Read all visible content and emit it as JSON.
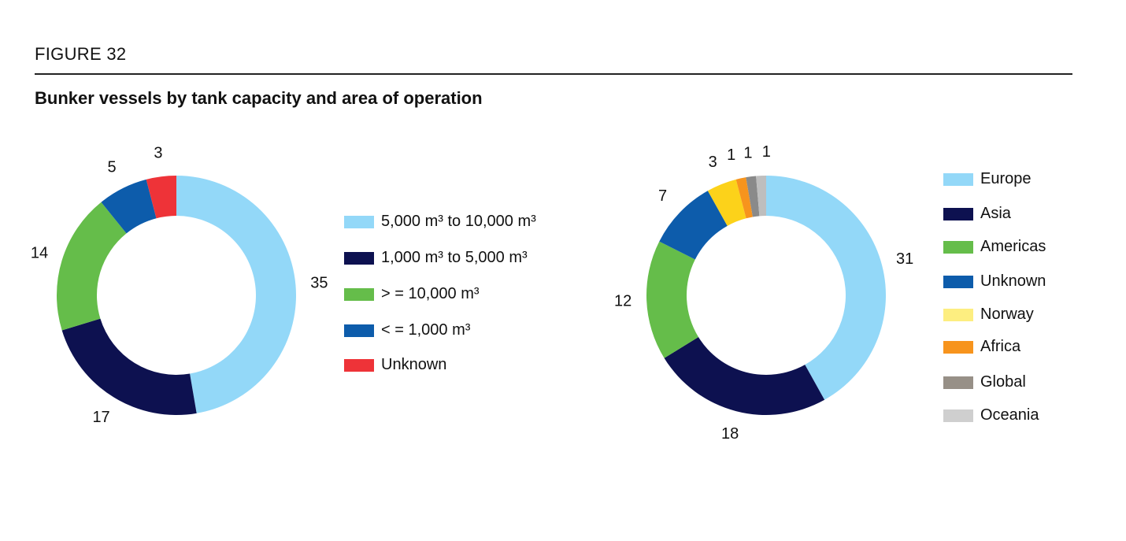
{
  "figure_label": "FIGURE 32",
  "title": "Bunker vessels by tank capacity and area of operation",
  "chart_data": [
    {
      "type": "pie",
      "donut": true,
      "start": "top",
      "direction": "clockwise",
      "categories": [
        "5,000 m³ to 10,000 m³",
        "1,000 m³ to 5,000 m³",
        "> = 10,000 m³",
        "< = 1,000 m³",
        "Unknown"
      ],
      "values": [
        35,
        17,
        14,
        5,
        3
      ],
      "labels": [
        "35",
        "17",
        "14",
        "5",
        "3"
      ],
      "colors": [
        "#93D8F8",
        "#0D1150",
        "#65BD4A",
        "#0D5CAB",
        "#EE3338"
      ],
      "legend": [
        {
          "text": "5,000 m³ to 10,000 m³",
          "color": "#93D8F8"
        },
        {
          "text": "1,000 m³ to 5,000 m³",
          "color": "#0D1150"
        },
        {
          "text": "> = 10,000 m³",
          "color": "#65BD4A"
        },
        {
          "text": "< = 1,000 m³",
          "color": "#0D5CAB"
        },
        {
          "text": "Unknown",
          "color": "#EE3338"
        }
      ],
      "legend_position": "right"
    },
    {
      "type": "pie",
      "donut": true,
      "start": "top",
      "direction": "clockwise",
      "categories": [
        "Europe",
        "Asia",
        "Americas",
        "Unknown",
        "Norway",
        "Africa",
        "Global",
        "Oceania"
      ],
      "values": [
        31,
        18,
        12,
        7,
        3,
        1,
        1,
        1
      ],
      "labels": [
        "31",
        "18",
        "12",
        "7",
        "3",
        "1",
        "1",
        "1"
      ],
      "colors": [
        "#93D8F8",
        "#0D1150",
        "#65BD4A",
        "#0D5CAB",
        "#FCD21A",
        "#F7941D",
        "#8A8A8A",
        "#BEBEBE"
      ],
      "legend": [
        {
          "text": "Europe",
          "color": "#93D8F8"
        },
        {
          "text": "Asia",
          "color": "#0D1150"
        },
        {
          "text": "Americas",
          "color": "#65BD4A"
        },
        {
          "text": "Unknown",
          "color": "#0D5CAB"
        },
        {
          "text": "Norway",
          "color": "#FDEE80"
        },
        {
          "text": "Africa",
          "color": "#F7941D"
        },
        {
          "text": "Global",
          "color": "#979087"
        },
        {
          "text": "Oceania",
          "color": "#CFCFCF"
        }
      ],
      "legend_position": "right"
    }
  ]
}
